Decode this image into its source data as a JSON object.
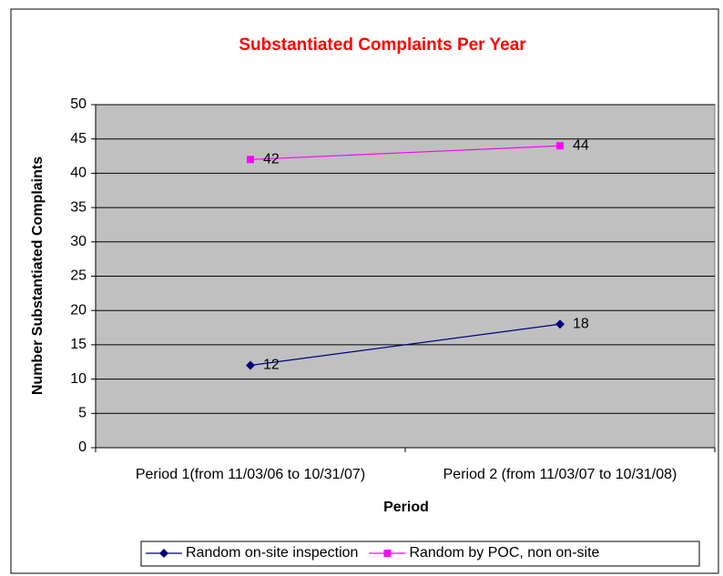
{
  "chart_data": {
    "type": "line",
    "title": "Substantiated Complaints Per Year",
    "x_label": "Period",
    "y_label": "Number Substantiated Complaints",
    "categories": [
      "Period 1(from 11/03/06 to 10/31/07)",
      "Period 2 (from 11/03/07 to 10/31/08)"
    ],
    "series": [
      {
        "name": "Random on-site inspection",
        "color": "#000080",
        "marker": "diamond",
        "values": [
          12,
          18
        ]
      },
      {
        "name": "Random by POC, non on-site",
        "color": "#ff00ff",
        "marker": "square",
        "values": [
          42,
          44
        ]
      }
    ],
    "ylim": [
      0,
      50
    ],
    "yticks": [
      0,
      5,
      10,
      15,
      20,
      25,
      30,
      35,
      40,
      45,
      50
    ],
    "grid": true,
    "legend": "bottom"
  }
}
